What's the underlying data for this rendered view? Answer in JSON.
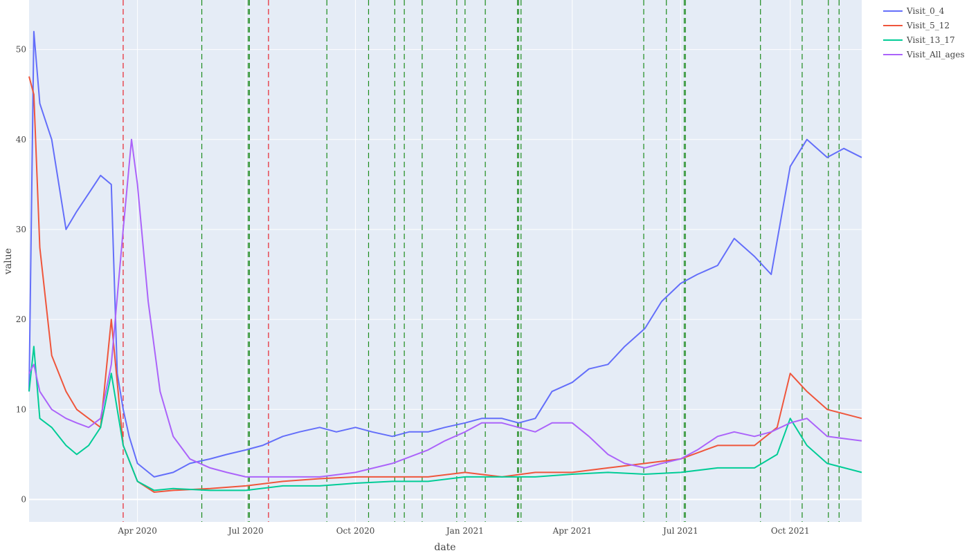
{
  "chart_data": {
    "type": "line",
    "title": "",
    "xlabel": "date",
    "ylabel": "value",
    "xlim": [
      "2020-01-01",
      "2021-11-30"
    ],
    "ylim": [
      -2.5,
      55.5
    ],
    "grid": true,
    "legend_position": "top-right",
    "x_ticks": [
      {
        "date": "2020-04-01",
        "label": "Apr 2020"
      },
      {
        "date": "2020-07-01",
        "label": "Jul 2020"
      },
      {
        "date": "2020-10-01",
        "label": "Oct 2020"
      },
      {
        "date": "2021-01-01",
        "label": "Jan 2021"
      },
      {
        "date": "2021-04-01",
        "label": "Apr 2021"
      },
      {
        "date": "2021-07-01",
        "label": "Jul 2021"
      },
      {
        "date": "2021-10-01",
        "label": "Oct 2021"
      }
    ],
    "y_ticks": [
      0,
      10,
      20,
      30,
      40,
      50
    ],
    "series": [
      {
        "name": "Visit_0_4",
        "color": "#636efa",
        "x": [
          "2020-01-01",
          "2020-01-05",
          "2020-01-10",
          "2020-01-20",
          "2020-02-01",
          "2020-02-10",
          "2020-02-20",
          "2020-03-01",
          "2020-03-10",
          "2020-03-15",
          "2020-03-20",
          "2020-03-25",
          "2020-04-01",
          "2020-04-15",
          "2020-05-01",
          "2020-05-15",
          "2020-06-01",
          "2020-06-15",
          "2020-07-01",
          "2020-07-15",
          "2020-08-01",
          "2020-08-15",
          "2020-09-01",
          "2020-09-15",
          "2020-10-01",
          "2020-10-15",
          "2020-11-01",
          "2020-11-15",
          "2020-12-01",
          "2020-12-15",
          "2021-01-01",
          "2021-01-15",
          "2021-02-01",
          "2021-02-15",
          "2021-03-01",
          "2021-03-15",
          "2021-04-01",
          "2021-04-15",
          "2021-05-01",
          "2021-05-15",
          "2021-06-01",
          "2021-06-15",
          "2021-07-01",
          "2021-07-15",
          "2021-08-01",
          "2021-08-15",
          "2021-09-01",
          "2021-09-15",
          "2021-10-01",
          "2021-10-15",
          "2021-11-01",
          "2021-11-15",
          "2021-11-30"
        ],
        "y": [
          12,
          52,
          44,
          40,
          30,
          32,
          34,
          36,
          35,
          14,
          10,
          7,
          4,
          2.5,
          3,
          4,
          4.5,
          5,
          5.5,
          6,
          7,
          7.5,
          8,
          7.5,
          8,
          7.5,
          7,
          7.5,
          7.5,
          8,
          8.5,
          9,
          9,
          8.5,
          9,
          12,
          13,
          14.5,
          15,
          17,
          19,
          22,
          24,
          25,
          26,
          29,
          27,
          25,
          37,
          40,
          38,
          39,
          38
        ]
      },
      {
        "name": "Visit_5_12",
        "color": "#ef553b",
        "x": [
          "2020-01-01",
          "2020-01-05",
          "2020-01-10",
          "2020-01-20",
          "2020-02-01",
          "2020-02-10",
          "2020-02-20",
          "2020-03-01",
          "2020-03-10",
          "2020-03-20",
          "2020-04-01",
          "2020-04-15",
          "2020-05-01",
          "2020-06-01",
          "2020-07-01",
          "2020-08-01",
          "2020-09-01",
          "2020-10-01",
          "2020-11-01",
          "2020-12-01",
          "2021-01-01",
          "2021-02-01",
          "2021-03-01",
          "2021-04-01",
          "2021-05-01",
          "2021-06-01",
          "2021-07-01",
          "2021-08-01",
          "2021-09-01",
          "2021-09-20",
          "2021-10-01",
          "2021-10-15",
          "2021-11-01",
          "2021-11-30"
        ],
        "y": [
          47,
          45,
          28,
          16,
          12,
          10,
          9,
          8,
          20,
          6,
          2,
          0.8,
          1,
          1.2,
          1.5,
          2,
          2.3,
          2.5,
          2.5,
          2.5,
          3,
          2.5,
          3,
          3,
          3.5,
          4,
          4.5,
          6,
          6,
          8,
          14,
          12,
          10,
          9
        ]
      },
      {
        "name": "Visit_13_17",
        "color": "#00cc96",
        "x": [
          "2020-01-01",
          "2020-01-05",
          "2020-01-10",
          "2020-01-20",
          "2020-02-01",
          "2020-02-10",
          "2020-02-20",
          "2020-03-01",
          "2020-03-10",
          "2020-03-20",
          "2020-04-01",
          "2020-04-15",
          "2020-05-01",
          "2020-06-01",
          "2020-07-01",
          "2020-08-01",
          "2020-09-01",
          "2020-10-01",
          "2020-11-01",
          "2020-12-01",
          "2021-01-01",
          "2021-02-01",
          "2021-03-01",
          "2021-04-01",
          "2021-05-01",
          "2021-06-01",
          "2021-07-01",
          "2021-08-01",
          "2021-09-01",
          "2021-09-20",
          "2021-10-01",
          "2021-10-15",
          "2021-11-01",
          "2021-11-30"
        ],
        "y": [
          12,
          17,
          9,
          8,
          6,
          5,
          6,
          8,
          14,
          6,
          2,
          1,
          1.2,
          1,
          1,
          1.5,
          1.5,
          1.8,
          2,
          2,
          2.5,
          2.5,
          2.5,
          2.8,
          3,
          2.8,
          3,
          3.5,
          3.5,
          5,
          9,
          6,
          4,
          3
        ]
      },
      {
        "name": "Visit_All_ages",
        "color": "#ab63fa",
        "x": [
          "2020-01-01",
          "2020-01-05",
          "2020-01-10",
          "2020-01-20",
          "2020-02-01",
          "2020-02-10",
          "2020-02-20",
          "2020-03-01",
          "2020-03-10",
          "2020-03-20",
          "2020-03-27",
          "2020-04-01",
          "2020-04-10",
          "2020-04-20",
          "2020-05-01",
          "2020-05-15",
          "2020-06-01",
          "2020-06-15",
          "2020-07-01",
          "2020-08-01",
          "2020-09-01",
          "2020-10-01",
          "2020-11-01",
          "2020-12-01",
          "2020-12-15",
          "2021-01-01",
          "2021-01-15",
          "2021-02-01",
          "2021-02-15",
          "2021-03-01",
          "2021-03-15",
          "2021-04-01",
          "2021-04-15",
          "2021-05-01",
          "2021-05-15",
          "2021-06-01",
          "2021-06-15",
          "2021-07-01",
          "2021-07-15",
          "2021-08-01",
          "2021-08-15",
          "2021-09-01",
          "2021-09-15",
          "2021-10-01",
          "2021-10-15",
          "2021-11-01",
          "2021-11-30"
        ],
        "y": [
          14,
          15,
          12,
          10,
          9,
          8.5,
          8,
          9,
          15,
          30,
          40,
          35,
          22,
          12,
          7,
          4.5,
          3.5,
          3,
          2.5,
          2.5,
          2.5,
          3,
          4,
          5.5,
          6.5,
          7.5,
          8.5,
          8.5,
          8,
          7.5,
          8.5,
          8.5,
          7,
          5,
          4,
          3.5,
          4,
          4.5,
          5.5,
          7,
          7.5,
          7,
          7.5,
          8.5,
          9,
          7,
          6.5
        ]
      }
    ],
    "vlines_red": [
      "2020-03-20",
      "2020-07-20"
    ],
    "vlines_green": [
      "2020-05-25",
      "2020-07-03",
      "2020-07-04",
      "2020-09-07",
      "2020-10-12",
      "2020-11-03",
      "2020-11-11",
      "2020-11-26",
      "2020-12-25",
      "2021-01-01",
      "2021-01-18",
      "2021-02-14",
      "2021-02-15",
      "2021-02-17",
      "2021-05-31",
      "2021-06-19",
      "2021-07-04",
      "2021-07-05",
      "2021-09-06",
      "2021-10-11",
      "2021-11-02",
      "2021-11-11"
    ]
  }
}
